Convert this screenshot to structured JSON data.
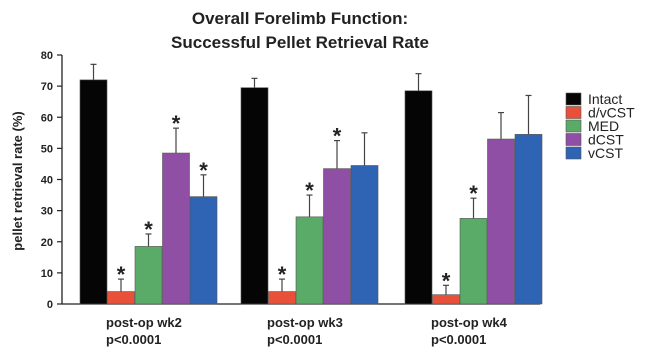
{
  "chart_data": {
    "type": "bar",
    "title": "Overall Forelimb Function:",
    "subtitle": "Successful Pellet Retrieval Rate",
    "ylabel": "pellet retrieval rate (%)",
    "xlabel": "",
    "ylim": [
      0,
      80
    ],
    "yticks": [
      0,
      10,
      20,
      30,
      40,
      50,
      60,
      70,
      80
    ],
    "categories": [
      "post-op wk2",
      "post-op wk3",
      "post-op wk4"
    ],
    "category_pvalues": [
      "p<0.0001",
      "p<0.0001",
      "p<0.0001"
    ],
    "legend_position": "right",
    "grid": false,
    "significance_marker": "*",
    "series": [
      {
        "name": "Intact",
        "color": "#050505",
        "values": [
          72,
          69.5,
          68.5
        ],
        "errors": [
          5,
          3,
          5.5
        ],
        "significant": [
          false,
          false,
          false
        ]
      },
      {
        "name": "d/vCST",
        "color": "#e8503a",
        "values": [
          4,
          4,
          3
        ],
        "errors": [
          4,
          4,
          3
        ],
        "significant": [
          true,
          true,
          true
        ]
      },
      {
        "name": "MED",
        "color": "#5aaa68",
        "values": [
          18.5,
          28,
          27.5
        ],
        "errors": [
          4,
          7,
          6.5
        ],
        "significant": [
          true,
          true,
          true
        ]
      },
      {
        "name": "dCST",
        "color": "#8e4fa5",
        "values": [
          48.5,
          43.5,
          53
        ],
        "errors": [
          8,
          9,
          8.5
        ],
        "significant": [
          true,
          true,
          false
        ]
      },
      {
        "name": "vCST",
        "color": "#2f63b4",
        "values": [
          34.5,
          44.5,
          54.5
        ],
        "errors": [
          7,
          10.5,
          12.5
        ],
        "significant": [
          true,
          false,
          false
        ]
      }
    ]
  }
}
